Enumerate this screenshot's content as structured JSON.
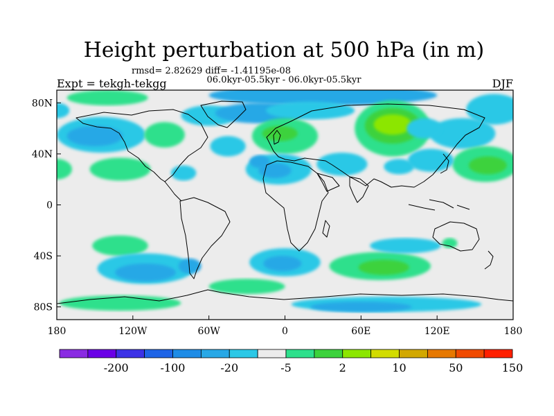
{
  "chart_data": {
    "type": "heatmap",
    "title": "Height perturbation at 500 hPa (in m)",
    "stats_line": "rmsd= 2.82629 diff= -1.41195e-08",
    "period_line": "06.0kyr-05.5kyr - 06.0kyr-05.5kyr",
    "experiment": "Expt = tekgh-tekgg",
    "season": "DJF",
    "xlabel": "",
    "ylabel": "",
    "xlim": [
      -180,
      180
    ],
    "ylim": [
      -90,
      90
    ],
    "x_ticks": [
      {
        "value": -180,
        "label": "180"
      },
      {
        "value": -120,
        "label": "120W"
      },
      {
        "value": -60,
        "label": "60W"
      },
      {
        "value": 0,
        "label": "0"
      },
      {
        "value": 60,
        "label": "60E"
      },
      {
        "value": 120,
        "label": "120E"
      },
      {
        "value": 180,
        "label": "180"
      }
    ],
    "y_ticks": [
      {
        "value": 80,
        "label": "80N"
      },
      {
        "value": 40,
        "label": "40N"
      },
      {
        "value": 0,
        "label": "0"
      },
      {
        "value": -40,
        "label": "40S"
      },
      {
        "value": -80,
        "label": "80S"
      }
    ],
    "colorbar": {
      "colors": [
        "#8a2be2",
        "#6a00e6",
        "#3c32e6",
        "#1e64e6",
        "#1e8ce6",
        "#28a8e6",
        "#2cc8e6",
        "#ececec",
        "#2ee08c",
        "#3cd23c",
        "#8ce600",
        "#d2dc00",
        "#d2a800",
        "#e67800",
        "#f04a00",
        "#ff2000"
      ],
      "tick_labels": [
        {
          "after_bin": 1,
          "label": "-200"
        },
        {
          "after_bin": 3,
          "label": "-100"
        },
        {
          "after_bin": 5,
          "label": "-20"
        },
        {
          "after_bin": 7,
          "label": "-5"
        },
        {
          "after_bin": 9,
          "label": "2"
        },
        {
          "after_bin": 11,
          "label": "10"
        },
        {
          "after_bin": 13,
          "label": "50"
        },
        {
          "after_bin": 15,
          "label": "150"
        }
      ]
    },
    "anomalies": [
      {
        "lon": -140,
        "lat": 84,
        "rx": 32,
        "ry": 6,
        "level": 8
      },
      {
        "lon": 30,
        "lat": 86,
        "rx": 90,
        "ry": 8,
        "level": 5
      },
      {
        "lon": -60,
        "lat": 70,
        "rx": 22,
        "ry": 8,
        "level": 6
      },
      {
        "lon": -20,
        "lat": 72,
        "rx": 35,
        "ry": 8,
        "level": 5
      },
      {
        "lon": 20,
        "lat": 74,
        "rx": 35,
        "ry": 7,
        "level": 6
      },
      {
        "lon": 165,
        "lat": 75,
        "rx": 22,
        "ry": 12,
        "level": 6
      },
      {
        "lon": -180,
        "lat": 74,
        "rx": 10,
        "ry": 6,
        "level": 6
      },
      {
        "lon": -145,
        "lat": 55,
        "rx": 35,
        "ry": 14,
        "level": 6
      },
      {
        "lon": -150,
        "lat": 54,
        "rx": 22,
        "ry": 8,
        "level": 5
      },
      {
        "lon": -95,
        "lat": 55,
        "rx": 16,
        "ry": 10,
        "level": 8
      },
      {
        "lon": -45,
        "lat": 46,
        "rx": 14,
        "ry": 8,
        "level": 6
      },
      {
        "lon": 0,
        "lat": 54,
        "rx": 26,
        "ry": 14,
        "level": 8
      },
      {
        "lon": -4,
        "lat": 56,
        "rx": 14,
        "ry": 6,
        "level": 9
      },
      {
        "lon": 85,
        "lat": 60,
        "rx": 30,
        "ry": 22,
        "level": 8
      },
      {
        "lon": 85,
        "lat": 62,
        "rx": 22,
        "ry": 14,
        "level": 9
      },
      {
        "lon": 85,
        "lat": 63,
        "rx": 15,
        "ry": 8,
        "level": 10
      },
      {
        "lon": 140,
        "lat": 56,
        "rx": 26,
        "ry": 12,
        "level": 6
      },
      {
        "lon": 158,
        "lat": 32,
        "rx": 26,
        "ry": 14,
        "level": 8
      },
      {
        "lon": 160,
        "lat": 31,
        "rx": 15,
        "ry": 7,
        "level": 9
      },
      {
        "lon": -130,
        "lat": 28,
        "rx": 24,
        "ry": 9,
        "level": 8
      },
      {
        "lon": -180,
        "lat": 28,
        "rx": 12,
        "ry": 8,
        "level": 8
      },
      {
        "lon": -80,
        "lat": 25,
        "rx": 10,
        "ry": 6,
        "level": 6
      },
      {
        "lon": -5,
        "lat": 28,
        "rx": 26,
        "ry": 12,
        "level": 6
      },
      {
        "lon": -8,
        "lat": 27,
        "rx": 13,
        "ry": 6,
        "level": 5
      },
      {
        "lon": -20,
        "lat": 34,
        "rx": 8,
        "ry": 5,
        "level": 5
      },
      {
        "lon": 45,
        "lat": 32,
        "rx": 20,
        "ry": 9,
        "level": 6
      },
      {
        "lon": 115,
        "lat": 35,
        "rx": 18,
        "ry": 9,
        "level": 6
      },
      {
        "lon": 110,
        "lat": 60,
        "rx": 14,
        "ry": 8,
        "level": 6
      },
      {
        "lon": 90,
        "lat": 30,
        "rx": 12,
        "ry": 6,
        "level": 6
      },
      {
        "lon": -130,
        "lat": -32,
        "rx": 22,
        "ry": 8,
        "level": 8
      },
      {
        "lon": -110,
        "lat": -50,
        "rx": 38,
        "ry": 12,
        "level": 6
      },
      {
        "lon": -110,
        "lat": -53,
        "rx": 24,
        "ry": 7,
        "level": 5
      },
      {
        "lon": -75,
        "lat": -48,
        "rx": 9,
        "ry": 6,
        "level": 5
      },
      {
        "lon": 0,
        "lat": -45,
        "rx": 28,
        "ry": 11,
        "level": 6
      },
      {
        "lon": -2,
        "lat": -46,
        "rx": 15,
        "ry": 6,
        "level": 5
      },
      {
        "lon": 75,
        "lat": -48,
        "rx": 40,
        "ry": 11,
        "level": 8
      },
      {
        "lon": 78,
        "lat": -49,
        "rx": 20,
        "ry": 6,
        "level": 9
      },
      {
        "lon": 95,
        "lat": -32,
        "rx": 28,
        "ry": 6,
        "level": 6
      },
      {
        "lon": 130,
        "lat": -30,
        "rx": 6,
        "ry": 4,
        "level": 8
      },
      {
        "lon": -130,
        "lat": -77,
        "rx": 48,
        "ry": 6,
        "level": 8
      },
      {
        "lon": -30,
        "lat": -64,
        "rx": 30,
        "ry": 6,
        "level": 8
      },
      {
        "lon": 80,
        "lat": -78,
        "rx": 75,
        "ry": 6,
        "level": 6
      },
      {
        "lon": 60,
        "lat": -80,
        "rx": 40,
        "ry": 4,
        "level": 5
      }
    ]
  }
}
